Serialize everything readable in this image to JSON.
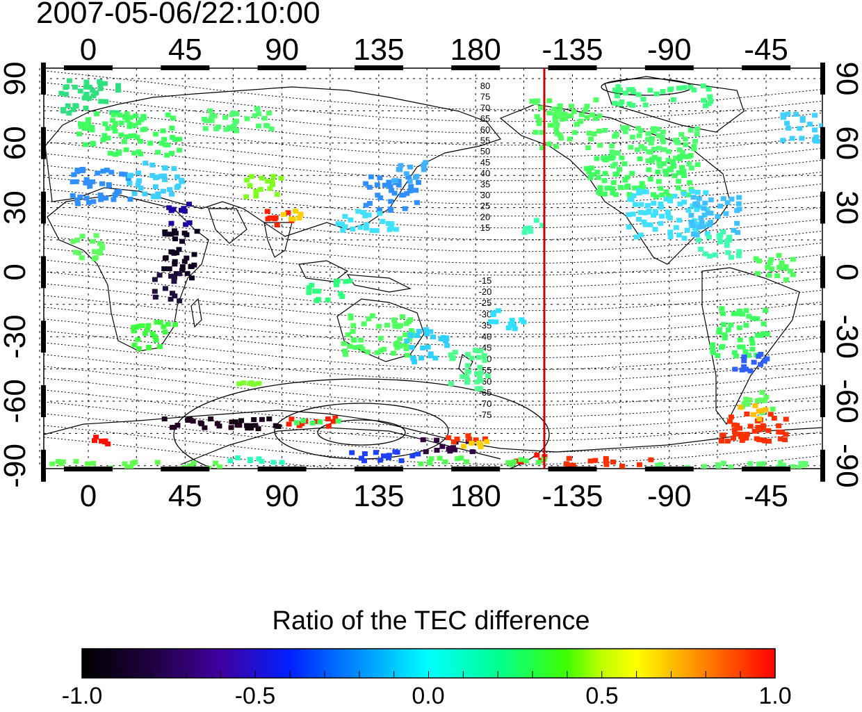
{
  "title": "2007-05-06/22:10:00",
  "top_axis_labels": [
    "0",
    "45",
    "90",
    "135",
    "180",
    "-135",
    "-90",
    "-45"
  ],
  "bottom_axis_labels": [
    "0",
    "45",
    "90",
    "135",
    "180",
    "-135",
    "-90",
    "-45"
  ],
  "left_axis_labels": [
    "90",
    "60",
    "30",
    "0",
    "-30",
    "-60",
    "-90"
  ],
  "right_axis_labels": [
    "90",
    "60",
    "30",
    "0",
    "-30",
    "-60",
    "-90"
  ],
  "contour_labels_north": [
    "80",
    "75",
    "70",
    "65",
    "60",
    "55",
    "50",
    "45",
    "40",
    "35",
    "30",
    "25",
    "20",
    "15"
  ],
  "contour_labels_south": [
    "-15",
    "-20",
    "-25",
    "-30",
    "-35",
    "-40",
    "-45",
    "-50",
    "-55",
    "-60",
    "-65",
    "-70",
    "-75"
  ],
  "colorbar": {
    "title": "Ratio of the TEC difference",
    "ticks": [
      "-1.0",
      "-0.5",
      "0.0",
      "0.5",
      "1.0"
    ],
    "range": [
      -1.0,
      1.0
    ]
  },
  "marker_line_color": "#cc0000"
}
